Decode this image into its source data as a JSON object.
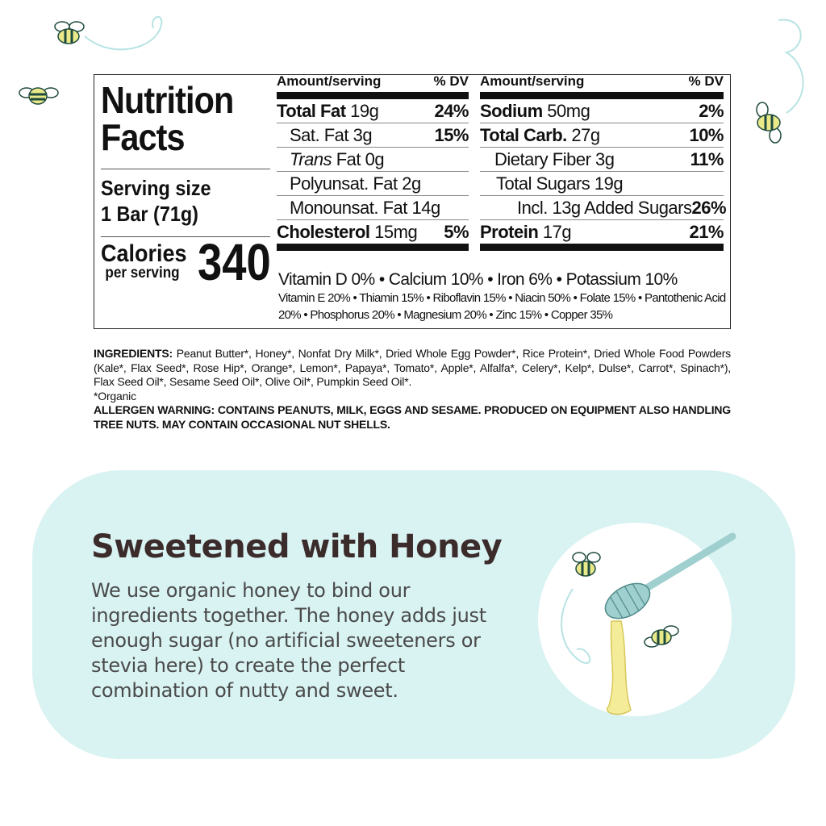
{
  "nutrition": {
    "title_line1": "Nutrition",
    "title_line2": "Facts",
    "serving_label": "Serving size",
    "serving_value": "1 Bar (71g)",
    "calories_label": "Calories",
    "calories_sub": "per serving",
    "calories": "340",
    "header_amount": "Amount/serving",
    "header_dv": "% DV",
    "left_rows": [
      {
        "name": "Total Fat",
        "amount": "19g",
        "dv": "24%"
      },
      {
        "name": "Sat. Fat",
        "amount": "3g",
        "dv": "15%"
      },
      {
        "name": "Trans",
        "amount": "Fat 0g",
        "dv": ""
      },
      {
        "name": "Polyunsat. Fat",
        "amount": "2g",
        "dv": ""
      },
      {
        "name": "Monounsat. Fat",
        "amount": "14g",
        "dv": ""
      },
      {
        "name": "Cholesterol",
        "amount": "15mg",
        "dv": "5%"
      }
    ],
    "right_rows": [
      {
        "name": "Sodium",
        "amount": "50mg",
        "dv": "2%"
      },
      {
        "name": "Total Carb.",
        "amount": "27g",
        "dv": "10%"
      },
      {
        "name": "Dietary Fiber",
        "amount": "3g",
        "dv": "11%"
      },
      {
        "name": "Total Sugars",
        "amount": "19g",
        "dv": ""
      },
      {
        "name": "Incl. 13g Added Sugars",
        "amount": "",
        "dv": "26%"
      },
      {
        "name": "Protein",
        "amount": "17g",
        "dv": "21%"
      }
    ],
    "vitamins_main": "Vitamin D 0% • Calcium 10% • Iron 6% • Potassium 10%",
    "vitamins_other": "Vitamin E 20% • Thiamin 15% • Riboflavin 15% • Niacin 50% • Folate 15% • Pantothenic Acid 20% • Phosphorus 20% • Magnesium 20% • Zinc 15% • Copper 35%"
  },
  "ingredients": {
    "label": "INGREDIENTS:",
    "text": "Peanut Butter*, Honey*, Nonfat Dry Milk*, Dried Whole Egg Powder*, Rice Protein*, Dried Whole Food Powders (Kale*, Flax Seed*, Rose Hip*, Orange*, Lemon*, Papaya*, Tomato*, Apple*, Alfalfa*, Celery*, Kelp*, Dulse*, Carrot*, Spinach*), Flax Seed Oil*, Sesame Seed Oil*, Olive Oil*, Pumpkin Seed Oil*.",
    "organic_note": "*Organic",
    "allergen": "ALLERGEN WARNING: CONTAINS PEANUTS, MILK, EGGS AND SESAME.  PRODUCED ON EQUIPMENT ALSO HANDLING TREE NUTS.  MAY CONTAIN OCCASIONAL NUT SHELLS."
  },
  "feature": {
    "heading": "Sweetened with Honey",
    "body": "We use organic honey to bind our ingredients together. The honey adds just enough sugar (no artificial sweeteners or stevia here) to create the perfect combination of nutty and sweet."
  },
  "colors": {
    "panel": "#d9f2f2",
    "heading": "#3b2b2b",
    "bee_yellow": "#e9e98a",
    "bee_stripe": "#1e4a3e",
    "honey": "#f5ec9a",
    "dipper": "#9fd0cf"
  }
}
